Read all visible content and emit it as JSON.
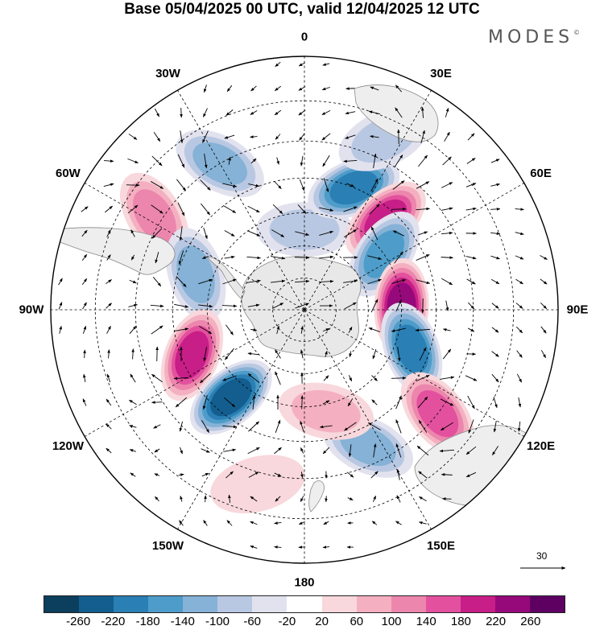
{
  "title": "Base 05/04/2025 00 UTC, valid 12/04/2025 12 UTC",
  "brand": {
    "name": "MODES",
    "mark": "©"
  },
  "longitude_labels": [
    {
      "text": "0",
      "lon": 0
    },
    {
      "text": "30E",
      "lon": 30
    },
    {
      "text": "60E",
      "lon": 60
    },
    {
      "text": "90E",
      "lon": 90
    },
    {
      "text": "120E",
      "lon": 120
    },
    {
      "text": "150E",
      "lon": 150
    },
    {
      "text": "180",
      "lon": 180
    },
    {
      "text": "150W",
      "lon": -150
    },
    {
      "text": "120W",
      "lon": -120
    },
    {
      "text": "90W",
      "lon": -90
    },
    {
      "text": "60W",
      "lon": -60
    },
    {
      "text": "30W",
      "lon": -30
    }
  ],
  "colorbar": {
    "ticks": [
      "-260",
      "-220",
      "-180",
      "-140",
      "-100",
      "-60",
      "-20",
      "20",
      "60",
      "100",
      "140",
      "180",
      "220",
      "260"
    ],
    "colors": [
      "#0c3e5e",
      "#135e8e",
      "#2a7fb4",
      "#4e9cc9",
      "#85b2d6",
      "#b9c8e2",
      "#e2e2ef",
      "#ffffff",
      "#f8d8dc",
      "#f4b0c0",
      "#ec86ad",
      "#e3519e",
      "#c71e87",
      "#96097a",
      "#5e0062"
    ]
  },
  "reference_vector": {
    "value": "30"
  },
  "map": {
    "projection": "south-polar-stereographic",
    "anomalies": [
      {
        "lon": 0,
        "lat": -65,
        "value": -60
      },
      {
        "lon": 22,
        "lat": -50,
        "value": -200
      },
      {
        "lon": 42,
        "lat": -53,
        "value": 180
      },
      {
        "lon": 25,
        "lat": -35,
        "value": -60
      },
      {
        "lon": 55,
        "lat": -60,
        "value": -160
      },
      {
        "lon": 88,
        "lat": -60,
        "value": 220
      },
      {
        "lon": 110,
        "lat": -55,
        "value": -180
      },
      {
        "lon": 128,
        "lat": -40,
        "value": 160
      },
      {
        "lon": 155,
        "lat": -45,
        "value": -100
      },
      {
        "lon": -30,
        "lat": -40,
        "value": -100
      },
      {
        "lon": -58,
        "lat": -38,
        "value": 100
      },
      {
        "lon": -72,
        "lat": -55,
        "value": -100
      },
      {
        "lon": -112,
        "lat": -53,
        "value": 200
      },
      {
        "lon": -140,
        "lat": -55,
        "value": -220
      },
      {
        "lon": 168,
        "lat": -58,
        "value": 60
      },
      {
        "lon": -165,
        "lat": -37,
        "value": 40
      }
    ]
  }
}
